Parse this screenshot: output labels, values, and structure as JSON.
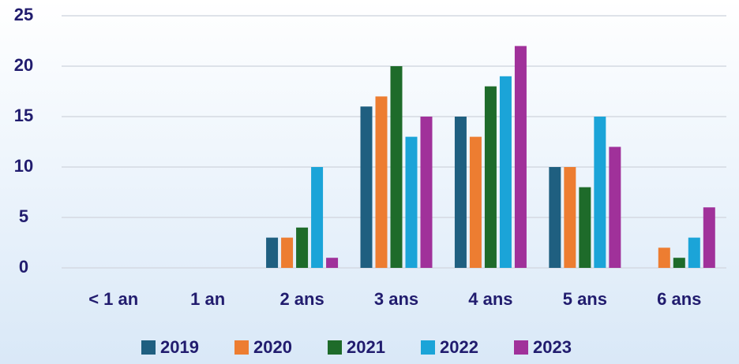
{
  "chart_data": {
    "type": "bar",
    "categories": [
      "< 1 an",
      "1 an",
      "2 ans",
      "3 ans",
      "4 ans",
      "5 ans",
      "6 ans"
    ],
    "series": [
      {
        "name": "2019",
        "color": "#1f5f80",
        "values": [
          0,
          0,
          3,
          16,
          15,
          10,
          0
        ]
      },
      {
        "name": "2020",
        "color": "#ed7d31",
        "values": [
          0,
          0,
          3,
          17,
          13,
          10,
          2
        ]
      },
      {
        "name": "2021",
        "color": "#1e6b2a",
        "values": [
          0,
          0,
          4,
          20,
          18,
          8,
          1
        ]
      },
      {
        "name": "2022",
        "color": "#1ba4d8",
        "values": [
          0,
          0,
          10,
          13,
          19,
          15,
          3
        ]
      },
      {
        "name": "2023",
        "color": "#a0319a",
        "values": [
          0,
          0,
          1,
          15,
          22,
          12,
          6
        ]
      }
    ],
    "ylim": [
      0,
      25
    ],
    "yticks": [
      0,
      5,
      10,
      15,
      20,
      25
    ],
    "grid": true,
    "legend": "bottom"
  }
}
